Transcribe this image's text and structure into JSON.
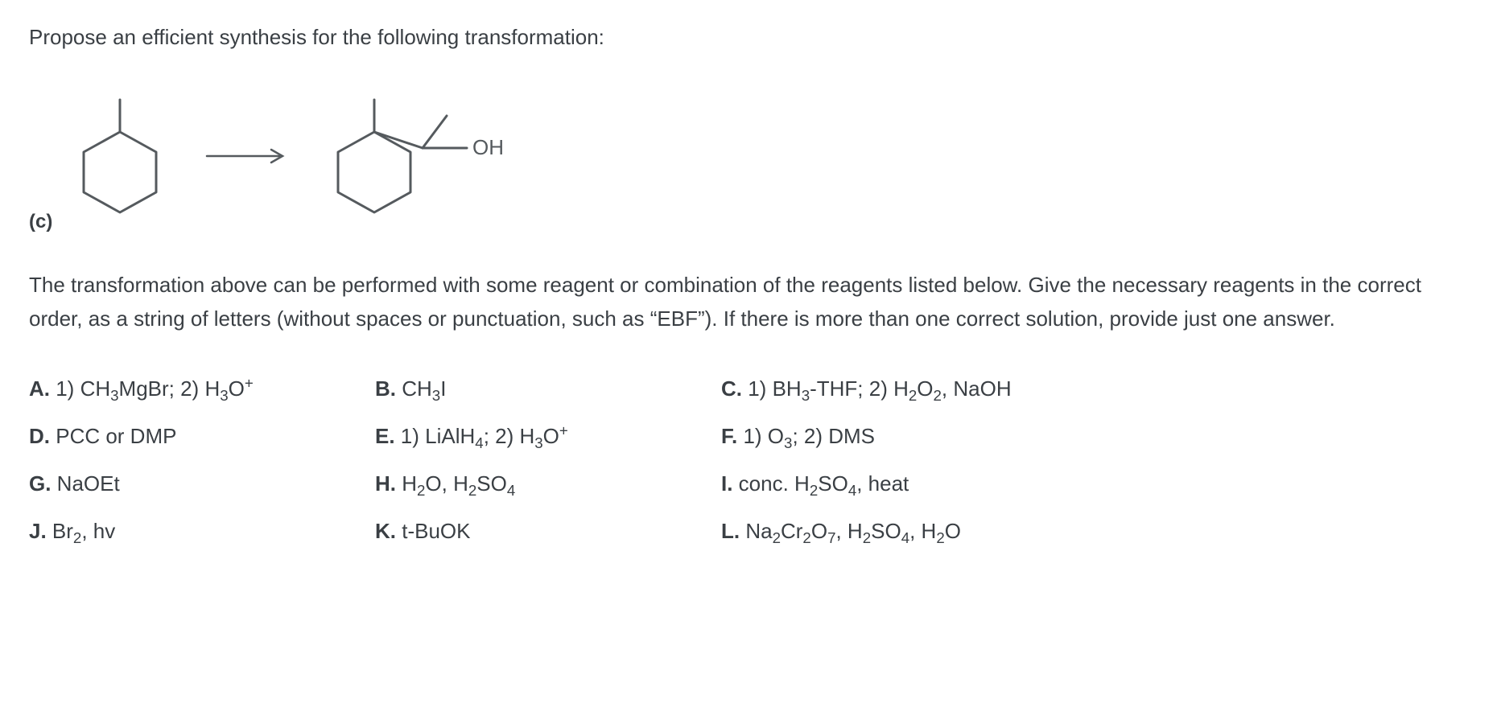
{
  "question": "Propose an efficient synthesis for the following transformation:",
  "diagram": {
    "label": "(c)",
    "product_oh_label": "OH",
    "stroke_color": "#555a5e",
    "stroke_width": 3
  },
  "instructions_plain": "The transformation above can be performed with some reagent or combination of the reagents listed below. Give the necessary reagents in the correct order, as a string of letters (without spaces or punctuation, such as “EBF”). If there is more than one correct solution, provide just one answer.",
  "options": {
    "A": {
      "label": "A.",
      "html": " 1) CH<sub>3</sub>MgBr; 2) H<sub>3</sub>O<sup>+</sup>"
    },
    "B": {
      "label": "B.",
      "html": " CH<sub>3</sub>I"
    },
    "C": {
      "label": "C.",
      "html": " 1) BH<sub>3</sub>-THF; 2) H<sub>2</sub>O<sub>2</sub>, NaOH"
    },
    "D": {
      "label": "D.",
      "html": " PCC or DMP"
    },
    "E": {
      "label": "E.",
      "html": " 1) LiAlH<sub>4</sub>; 2) H<sub>3</sub>O<sup>+</sup>"
    },
    "F": {
      "label": "F.",
      "html": " 1) O<sub>3</sub>; 2) DMS"
    },
    "G": {
      "label": "G.",
      "html": " NaOEt"
    },
    "H": {
      "label": "H.",
      "html": " H<sub>2</sub>O, H<sub>2</sub>SO<sub>4</sub>"
    },
    "I": {
      "label": "I.",
      "html": " conc. H<sub>2</sub>SO<sub>4</sub>, heat"
    },
    "J": {
      "label": "J.",
      "html": " Br<sub>2</sub>, hv"
    },
    "K": {
      "label": "K.",
      "html": " t-BuOK"
    },
    "L": {
      "label": "L.",
      "html": " Na<sub>2</sub>Cr<sub>2</sub>O<sub>7</sub>, H<sub>2</sub>SO<sub>4</sub>, H<sub>2</sub>O"
    }
  },
  "layout_order": [
    "A",
    "B",
    "C",
    "D",
    "E",
    "F",
    "G",
    "H",
    "I",
    "J",
    "K",
    "L"
  ]
}
